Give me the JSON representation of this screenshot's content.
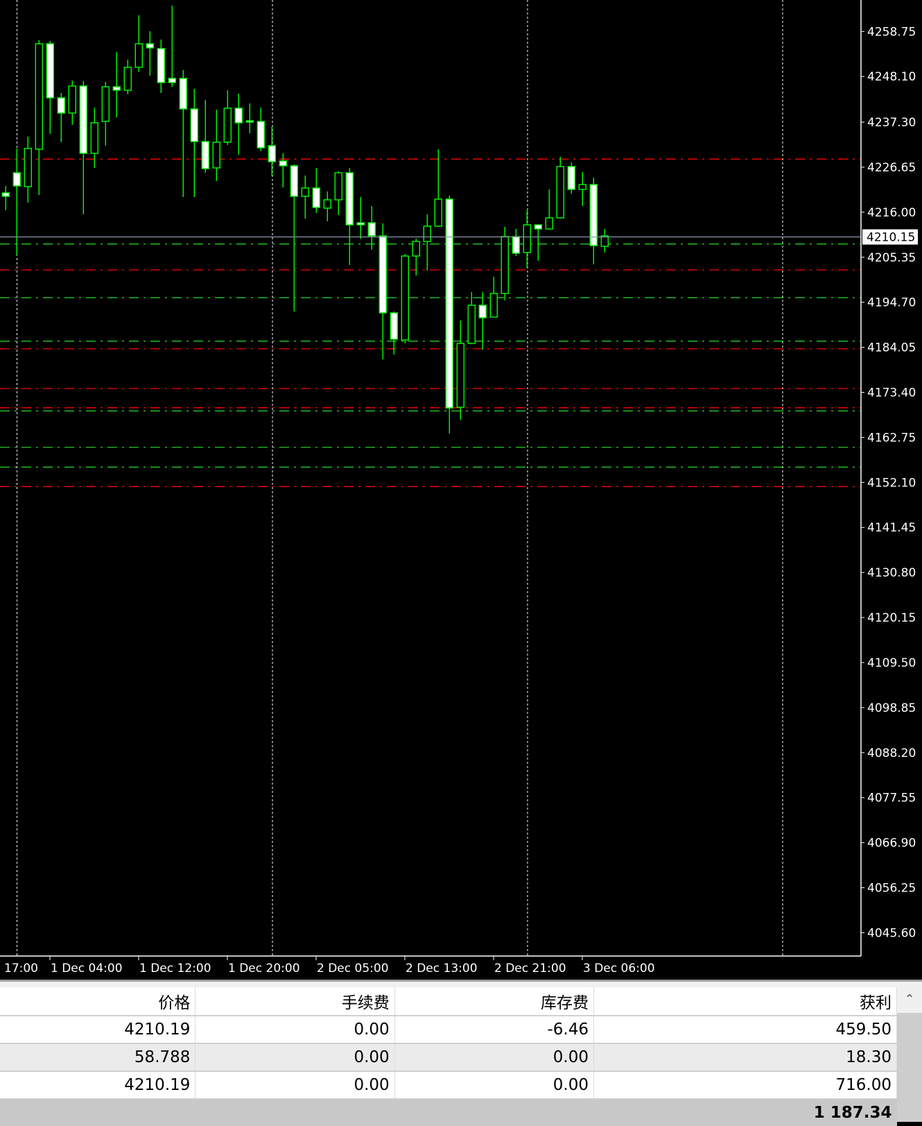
{
  "chart_data": {
    "type": "candlestick",
    "colors": {
      "background": "#000000",
      "candle_outline": "#00ff00",
      "bear_body": "#ffffff",
      "bull_body": "#000000",
      "grid": "#ffffff",
      "bid_line": "#8899aa"
    },
    "ylim": [
      4045.6,
      4258.75
    ],
    "y_ticks": [
      "4258.75",
      "4248.10",
      "4237.30",
      "4226.65",
      "4216.00",
      "4205.35",
      "4194.70",
      "4184.05",
      "4173.40",
      "4162.75",
      "4152.10",
      "4141.45",
      "4130.80",
      "4120.15",
      "4109.50",
      "4098.85",
      "4088.20",
      "4077.55",
      "4066.90",
      "4056.25",
      "4045.60"
    ],
    "x_labels": [
      "17:00",
      "1 Dec 04:00",
      "1 Dec 12:00",
      "1 Dec 20:00",
      "2 Dec 05:00",
      "2 Dec 13:00",
      "2 Dec 21:00",
      "3 Dec 06:00"
    ],
    "bid_price": "4210.15",
    "candles_ohlc": [
      [
        4220.57,
        4222.21,
        4216.47,
        4219.75
      ],
      [
        4225.33,
        4231.07,
        4205.8,
        4222.21
      ],
      [
        4222.05,
        4233.86,
        4218.27,
        4231.07
      ],
      [
        4230.9,
        4256.66,
        4220.08,
        4255.84
      ],
      [
        4255.84,
        4256.5,
        4234.51,
        4243.05
      ],
      [
        4243.05,
        4244.19,
        4232.55,
        4239.44
      ],
      [
        4239.44,
        4247.15,
        4236.65,
        4245.84
      ],
      [
        4245.84,
        4246.98,
        4215.48,
        4229.92
      ],
      [
        4229.92,
        4240.75,
        4226.48,
        4237.14
      ],
      [
        4237.47,
        4246.82,
        4231.73,
        4245.67
      ],
      [
        4245.67,
        4253.87,
        4238.45,
        4244.85
      ],
      [
        4244.85,
        4252.07,
        4243.87,
        4250.27
      ],
      [
        4250.27,
        4262.57,
        4249.12,
        4255.84
      ],
      [
        4255.84,
        4258.8,
        4248.3,
        4254.86
      ],
      [
        4254.7,
        4256.83,
        4244.19,
        4246.66
      ],
      [
        4247.64,
        4264.87,
        4245.67,
        4246.66
      ],
      [
        4247.64,
        4249.61,
        4219.58,
        4240.42
      ],
      [
        4240.42,
        4245.18,
        4219.58,
        4232.71
      ],
      [
        4232.71,
        4242.55,
        4225.33,
        4226.31
      ],
      [
        4226.48,
        4240.26,
        4223.36,
        4232.55
      ],
      [
        4232.55,
        4244.85,
        4231.9,
        4240.59
      ],
      [
        4240.59,
        4244.03,
        4229.59,
        4237.14
      ],
      [
        4237.63,
        4241.73,
        4234.68,
        4237.3
      ],
      [
        4237.47,
        4240.75,
        4230.41,
        4231.23
      ],
      [
        4231.73,
        4236.16,
        4224.51,
        4227.95
      ],
      [
        4228.12,
        4229.92,
        4221.88,
        4226.97
      ],
      [
        4226.97,
        4227.3,
        4192.51,
        4219.75
      ],
      [
        4219.75,
        4224.67,
        4214.5,
        4221.72
      ],
      [
        4221.72,
        4226.48,
        4215.81,
        4217.12
      ],
      [
        4216.96,
        4220.9,
        4213.84,
        4218.93
      ],
      [
        4218.93,
        4225.65,
        4215.32,
        4225.33
      ],
      [
        4225.33,
        4226.48,
        4203.51,
        4213.02
      ],
      [
        4213.51,
        4219.58,
        4209.74,
        4213.02
      ],
      [
        4213.51,
        4217.45,
        4207.11,
        4210.4
      ],
      [
        4210.4,
        4213.35,
        4181.19,
        4192.19
      ],
      [
        4192.19,
        4192.51,
        4182.34,
        4185.95
      ],
      [
        4185.79,
        4206.13,
        4184.97,
        4205.64
      ],
      [
        4205.64,
        4209.74,
        4201.04,
        4209.08
      ],
      [
        4209.08,
        4215.48,
        4202.19,
        4212.69
      ],
      [
        4212.69,
        4230.9,
        4212.53,
        4219.09
      ],
      [
        4219.09,
        4219.91,
        4163.64,
        4169.71
      ],
      [
        4169.87,
        4190.38,
        4166.92,
        4184.97
      ],
      [
        4184.97,
        4197.11,
        4184.8,
        4193.99
      ],
      [
        4193.99,
        4197.11,
        4183.49,
        4191.04
      ],
      [
        4191.2,
        4200.72,
        4191.2,
        4196.78
      ],
      [
        4196.78,
        4212.53,
        4195.14,
        4210.23
      ],
      [
        4210.23,
        4212.04,
        4205.64,
        4206.29
      ],
      [
        4206.46,
        4216.47,
        4202.85,
        4213.02
      ],
      [
        4213.02,
        4213.02,
        4204.49,
        4212.04
      ],
      [
        4212.04,
        4221.39,
        4211.87,
        4214.66
      ],
      [
        4214.66,
        4229.1,
        4214.5,
        4226.8
      ],
      [
        4226.8,
        4227.79,
        4220.4,
        4221.39
      ],
      [
        4221.39,
        4225.49,
        4217.45,
        4222.54
      ],
      [
        4222.54,
        4224.18,
        4203.67,
        4208.1
      ],
      [
        4207.94,
        4212.04,
        4206.46,
        4210.4
      ]
    ],
    "levels": [
      {
        "price": 4228.56,
        "color": "#ff0000"
      },
      {
        "price": 4208.48,
        "color": "#22cc22"
      },
      {
        "price": 4202.36,
        "color": "#ff0000"
      },
      {
        "price": 4195.79,
        "color": "#22cc22"
      },
      {
        "price": 4185.51,
        "color": "#22cc22"
      },
      {
        "price": 4183.7,
        "color": "#ff0000"
      },
      {
        "price": 4174.3,
        "color": "#ff0000"
      },
      {
        "price": 4169.76,
        "color": "#ff0000"
      },
      {
        "price": 4169.0,
        "color": "#22cc22"
      },
      {
        "price": 4160.4,
        "color": "#22cc22"
      },
      {
        "price": 4155.71,
        "color": "#22cc22"
      },
      {
        "price": 4151.12,
        "color": "#ff0000"
      }
    ]
  },
  "table": {
    "headers": [
      "价格",
      "手续费",
      "库存费",
      "获利"
    ],
    "rows": [
      [
        "4210.19",
        "0.00",
        "-6.46",
        "459.50"
      ],
      [
        "58.788",
        "0.00",
        "0.00",
        "18.30"
      ],
      [
        "4210.19",
        "0.00",
        "0.00",
        "716.00"
      ]
    ],
    "total": "1 187.34",
    "scroll_up_icon": "chevron-up-icon"
  }
}
